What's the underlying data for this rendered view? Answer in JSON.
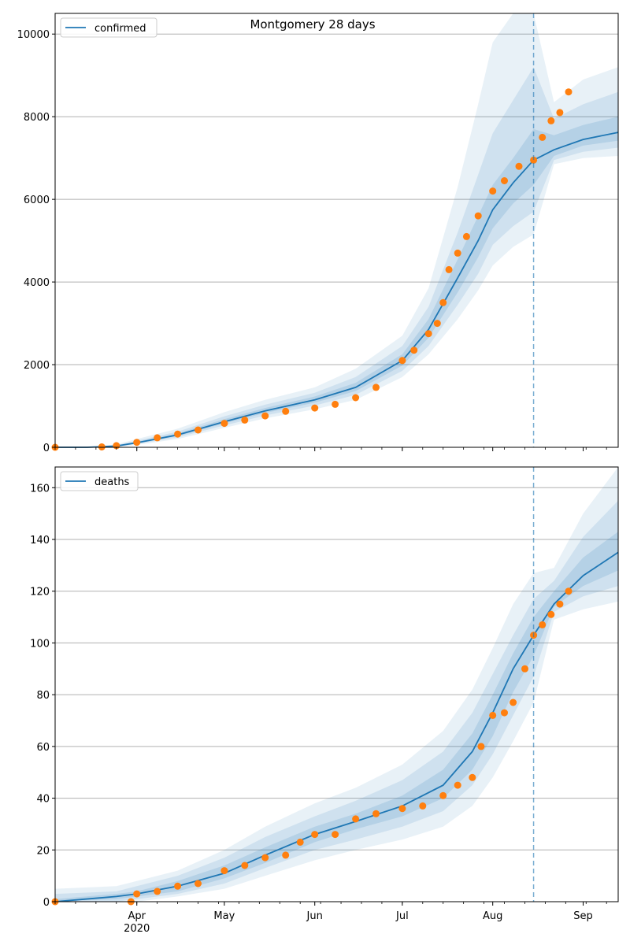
{
  "figure_title": "Montgomery 28 days",
  "colors": {
    "model": "#1f77b4",
    "observed": "#ff7f0e",
    "band": "#1f77b4",
    "grid": "#b0b0b0",
    "vline": "#1f77b4"
  },
  "x_axis": {
    "tick_labels": [
      "Apr",
      "May",
      "Jun",
      "Jul",
      "Aug",
      "Sep"
    ],
    "tick_dates": [
      "2020-04-01",
      "2020-05-01",
      "2020-06-01",
      "2020-07-01",
      "2020-08-01",
      "2020-09-01"
    ],
    "year_label": "2020",
    "xlim": [
      "2020-03-04",
      "2020-09-13"
    ],
    "vline_date": "2020-08-15"
  },
  "chart_data": [
    {
      "type": "line",
      "legend": "confirmed",
      "legend_position": "top-left",
      "grid": "y",
      "ylim": [
        0,
        10500
      ],
      "yticks": [
        0,
        2000,
        4000,
        6000,
        8000,
        10000
      ],
      "model": {
        "x": [
          "2020-03-04",
          "2020-03-15",
          "2020-03-25",
          "2020-04-01",
          "2020-04-15",
          "2020-05-01",
          "2020-05-15",
          "2020-06-01",
          "2020-06-15",
          "2020-07-01",
          "2020-07-10",
          "2020-07-20",
          "2020-07-27",
          "2020-08-01",
          "2020-08-08",
          "2020-08-15",
          "2020-08-22",
          "2020-09-01",
          "2020-09-13"
        ],
        "y": [
          0,
          0,
          30,
          110,
          300,
          620,
          880,
          1150,
          1450,
          2100,
          2850,
          4100,
          5000,
          5750,
          6400,
          6950,
          7200,
          7450,
          7620
        ],
        "bands": [
          {
            "lower": [
              0,
              0,
              5,
              60,
              200,
              470,
              700,
              920,
              1150,
              1700,
              2250,
              3100,
              3800,
              4400,
              4850,
              5150,
              6850,
              7000,
              7050
            ],
            "upper": [
              0,
              0,
              70,
              200,
              450,
              850,
              1150,
              1450,
              1900,
              2700,
              3850,
              6300,
              8300,
              9800,
              10500,
              10500,
              8350,
              8900,
              9200
            ]
          },
          {
            "lower": [
              0,
              0,
              15,
              80,
              240,
              530,
              770,
              1010,
              1270,
              1850,
              2450,
              3450,
              4200,
              4900,
              5350,
              5700,
              6950,
              7150,
              7250
            ],
            "upper": [
              0,
              0,
              50,
              160,
              380,
              750,
              1030,
              1320,
              1700,
              2450,
              3400,
              5200,
              6600,
              7600,
              8400,
              9200,
              7950,
              8300,
              8600
            ]
          },
          {
            "lower": [
              0,
              0,
              22,
              95,
              270,
              580,
              830,
              1080,
              1360,
              1980,
              2650,
              3750,
              4600,
              5300,
              5900,
              6350,
              7050,
              7300,
              7420
            ],
            "upper": [
              0,
              0,
              40,
              135,
              335,
              680,
              950,
              1230,
              1560,
              2250,
              3100,
              4550,
              5600,
              6350,
              7000,
              7700,
              7550,
              7800,
              8000
            ]
          }
        ]
      },
      "observed": {
        "x": [
          "2020-03-04",
          "2020-03-20",
          "2020-03-25",
          "2020-04-01",
          "2020-04-08",
          "2020-04-15",
          "2020-04-22",
          "2020-05-01",
          "2020-05-08",
          "2020-05-15",
          "2020-05-22",
          "2020-06-01",
          "2020-06-08",
          "2020-06-15",
          "2020-06-22",
          "2020-07-01",
          "2020-07-05",
          "2020-07-10",
          "2020-07-13",
          "2020-07-15",
          "2020-07-17",
          "2020-07-20",
          "2020-07-23",
          "2020-07-27",
          "2020-08-01",
          "2020-08-05",
          "2020-08-10",
          "2020-08-15",
          "2020-08-18",
          "2020-08-21",
          "2020-08-24",
          "2020-08-27"
        ],
        "y": [
          0,
          10,
          40,
          120,
          230,
          320,
          420,
          580,
          660,
          760,
          870,
          950,
          1040,
          1200,
          1450,
          2100,
          2350,
          2750,
          3000,
          3500,
          4300,
          4700,
          5100,
          5600,
          6200,
          6450,
          6800,
          6950,
          7500,
          7900,
          8100,
          8600
        ]
      }
    },
    {
      "type": "line",
      "legend": "deaths",
      "legend_position": "top-left",
      "grid": "y",
      "ylim": [
        0,
        168
      ],
      "yticks": [
        0,
        20,
        40,
        60,
        80,
        100,
        120,
        140,
        160
      ],
      "model": {
        "x": [
          "2020-03-04",
          "2020-03-25",
          "2020-04-01",
          "2020-04-15",
          "2020-05-01",
          "2020-05-15",
          "2020-06-01",
          "2020-06-15",
          "2020-07-01",
          "2020-07-15",
          "2020-07-25",
          "2020-08-01",
          "2020-08-08",
          "2020-08-15",
          "2020-08-22",
          "2020-09-01",
          "2020-09-13"
        ],
        "y": [
          0,
          2,
          3,
          6,
          11,
          18,
          26,
          31,
          37,
          45,
          58,
          73,
          90,
          103,
          115,
          126,
          135
        ],
        "bands": [
          {
            "lower": [
              0,
              0,
              0,
              2,
              5,
              10,
              16,
              20,
              24,
              29,
              37,
              48,
              62,
              77,
              109,
              113,
              116
            ],
            "upper": [
              5,
              6,
              8,
              12,
              20,
              29,
              38,
              44,
              53,
              66,
              82,
              98,
              115,
              127,
              129,
              150,
              168
            ]
          },
          {
            "lower": [
              0,
              0,
              1,
              3,
              7,
              13,
              20,
              24,
              29,
              35,
              45,
              57,
              72,
              87,
              112,
              118,
              122
            ],
            "upper": [
              3,
              4,
              6,
              10,
              17,
              25,
              33,
              39,
              47,
              58,
              73,
              88,
              103,
              117,
              124,
              141,
              155
            ]
          },
          {
            "lower": [
              0,
              1,
              2,
              4,
              9,
              15,
              23,
              28,
              33,
              40,
              51,
              64,
              81,
              95,
              114,
              122,
              128
            ],
            "upper": [
              1,
              3,
              4,
              8,
              14,
              21,
              29,
              34,
              41,
              51,
              65,
              80,
              96,
              110,
              120,
              133,
              143
            ]
          }
        ]
      },
      "observed": {
        "x": [
          "2020-03-04",
          "2020-03-30",
          "2020-04-01",
          "2020-04-08",
          "2020-04-15",
          "2020-04-22",
          "2020-05-01",
          "2020-05-08",
          "2020-05-15",
          "2020-05-22",
          "2020-05-27",
          "2020-06-01",
          "2020-06-08",
          "2020-06-15",
          "2020-06-22",
          "2020-07-01",
          "2020-07-08",
          "2020-07-15",
          "2020-07-20",
          "2020-07-25",
          "2020-07-28",
          "2020-08-01",
          "2020-08-05",
          "2020-08-08",
          "2020-08-12",
          "2020-08-15",
          "2020-08-18",
          "2020-08-21",
          "2020-08-24",
          "2020-08-27"
        ],
        "y": [
          0,
          0,
          3,
          4,
          6,
          7,
          12,
          14,
          17,
          18,
          23,
          26,
          26,
          32,
          34,
          36,
          37,
          41,
          45,
          48,
          60,
          72,
          73,
          77,
          90,
          103,
          107,
          111,
          115,
          120
        ]
      }
    }
  ]
}
